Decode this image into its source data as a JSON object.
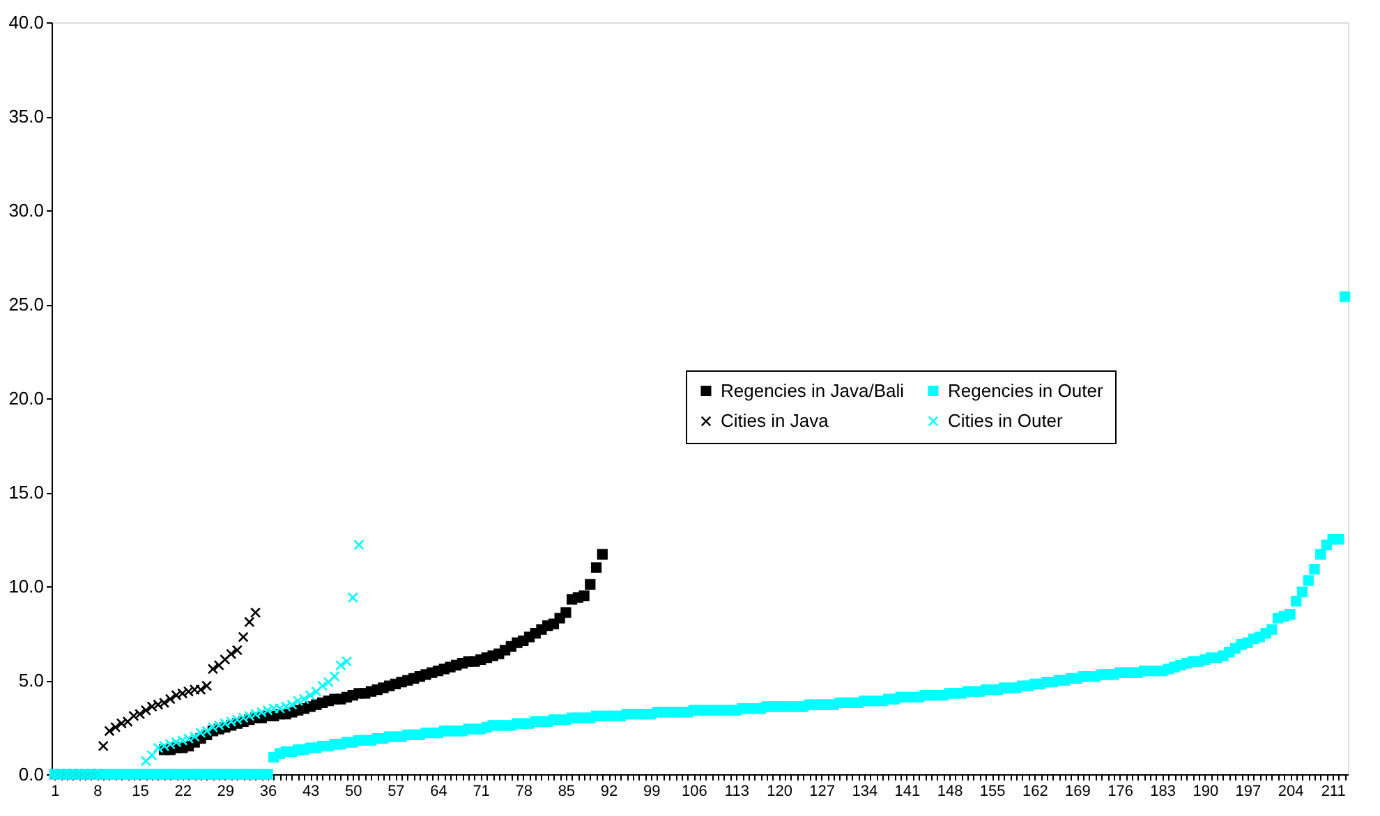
{
  "chart_data": {
    "type": "scatter",
    "categories": [
      "1",
      null,
      null,
      null,
      null,
      null,
      null,
      "8",
      null,
      null,
      null,
      null,
      null,
      null,
      "15",
      null,
      null,
      null,
      null,
      null,
      null,
      "22",
      null,
      null,
      null,
      null,
      null,
      null,
      "29",
      null,
      null,
      null,
      null,
      null,
      null,
      "36",
      null,
      null,
      null,
      null,
      null,
      null,
      "43",
      null,
      null,
      null,
      null,
      null,
      null,
      "50",
      null,
      null,
      null,
      null,
      null,
      null,
      "57",
      null,
      null,
      null,
      null,
      null,
      null,
      "64",
      null,
      null,
      null,
      null,
      null,
      null,
      "71",
      null,
      null,
      null,
      null,
      null,
      null,
      "78",
      null,
      null,
      null,
      null,
      null,
      null,
      "85",
      null,
      null,
      null,
      null,
      null,
      null,
      "92",
      null,
      null,
      null,
      null,
      null,
      null,
      "99",
      null,
      null,
      null,
      null,
      null,
      null,
      "106",
      null,
      null,
      null,
      null,
      null,
      null,
      "113",
      null,
      null,
      null,
      null,
      null,
      null,
      "120",
      null,
      null,
      null,
      null,
      null,
      null,
      "127",
      null,
      null,
      null,
      null,
      null,
      null,
      "134",
      null,
      null,
      null,
      null,
      null,
      null,
      "141",
      null,
      null,
      null,
      null,
      null,
      null,
      "148",
      null,
      null,
      null,
      null,
      null,
      null,
      "155",
      null,
      null,
      null,
      null,
      null,
      null,
      "162",
      null,
      null,
      null,
      null,
      null,
      null,
      "169",
      null,
      null,
      null,
      null,
      null,
      null,
      "176",
      null,
      null,
      null,
      null,
      null,
      null,
      "183",
      null,
      null,
      null,
      null,
      null,
      null,
      "190",
      null,
      null,
      null,
      null,
      null,
      null,
      "197",
      null,
      null,
      null,
      null,
      null,
      null,
      "204",
      null,
      null,
      null,
      null,
      null,
      null,
      "211",
      null,
      null
    ],
    "series": [
      {
        "name": "Regencies in Java/Bali",
        "color": "#000000",
        "marker": "square",
        "values": [
          null,
          null,
          null,
          null,
          null,
          null,
          null,
          null,
          null,
          null,
          null,
          null,
          null,
          null,
          null,
          null,
          null,
          null,
          1.3,
          1.3,
          1.4,
          1.4,
          1.5,
          1.7,
          1.9,
          2.1,
          2.3,
          2.4,
          2.5,
          2.6,
          2.7,
          2.8,
          2.9,
          3.0,
          3.0,
          3.1,
          3.1,
          3.2,
          3.2,
          3.3,
          3.4,
          3.5,
          3.6,
          3.7,
          3.8,
          3.9,
          4.0,
          4.0,
          4.1,
          4.2,
          4.3,
          4.3,
          4.4,
          4.5,
          4.6,
          4.7,
          4.8,
          4.9,
          5.0,
          5.1,
          5.2,
          5.3,
          5.4,
          5.5,
          5.6,
          5.7,
          5.8,
          5.9,
          6.0,
          6.0,
          6.1,
          6.2,
          6.3,
          6.4,
          6.6,
          6.8,
          7.0,
          7.1,
          7.3,
          7.5,
          7.7,
          7.9,
          8.0,
          8.3,
          8.6,
          9.3,
          9.4,
          9.5,
          10.1,
          11.0,
          11.7,
          null,
          null,
          null,
          null,
          null,
          null,
          null,
          null,
          null,
          null,
          null,
          null,
          null,
          null,
          null,
          null,
          null,
          null,
          null,
          null,
          null,
          null,
          null,
          null,
          null,
          null,
          null,
          null,
          null,
          null,
          null,
          null,
          null,
          null,
          null,
          null,
          null,
          null,
          null,
          null,
          null,
          null,
          null,
          null,
          null,
          null,
          null,
          null,
          null,
          null,
          null,
          null,
          null,
          null,
          null,
          null,
          null,
          null,
          null,
          null,
          null,
          null,
          null,
          null,
          null,
          null,
          null,
          null,
          null,
          null,
          null,
          null,
          null,
          null,
          null,
          null,
          null,
          null,
          null,
          null,
          null,
          null,
          null,
          null,
          null,
          null,
          null,
          null,
          null,
          null,
          null,
          null,
          null,
          null,
          null,
          null,
          null,
          null,
          null,
          null,
          null,
          null,
          null,
          null,
          null,
          null,
          null,
          null,
          null,
          null,
          null,
          null,
          null,
          null,
          null,
          null,
          null,
          null,
          null,
          null,
          null,
          null
        ]
      },
      {
        "name": "Regencies in Outer",
        "color": "#00ffff",
        "marker": "square",
        "values": [
          0,
          0,
          0,
          0,
          0,
          0,
          0,
          0,
          0,
          0,
          0,
          0,
          0,
          0,
          0,
          0,
          0,
          0,
          0,
          0,
          0,
          0,
          0,
          0,
          0,
          0,
          0,
          0,
          0,
          0,
          0,
          0,
          0,
          0,
          0,
          0,
          0.9,
          1.1,
          1.2,
          1.2,
          1.3,
          1.3,
          1.4,
          1.4,
          1.5,
          1.5,
          1.6,
          1.6,
          1.7,
          1.7,
          1.8,
          1.8,
          1.8,
          1.9,
          1.9,
          2.0,
          2.0,
          2.0,
          2.1,
          2.1,
          2.1,
          2.2,
          2.2,
          2.2,
          2.3,
          2.3,
          2.3,
          2.3,
          2.4,
          2.4,
          2.4,
          2.5,
          2.6,
          2.6,
          2.6,
          2.6,
          2.7,
          2.7,
          2.7,
          2.8,
          2.8,
          2.8,
          2.9,
          2.9,
          2.9,
          3.0,
          3.0,
          3.0,
          3.0,
          3.1,
          3.1,
          3.1,
          3.1,
          3.1,
          3.2,
          3.2,
          3.2,
          3.2,
          3.2,
          3.3,
          3.3,
          3.3,
          3.3,
          3.3,
          3.3,
          3.4,
          3.4,
          3.4,
          3.4,
          3.4,
          3.4,
          3.4,
          3.4,
          3.5,
          3.5,
          3.5,
          3.5,
          3.6,
          3.6,
          3.6,
          3.6,
          3.6,
          3.6,
          3.6,
          3.7,
          3.7,
          3.7,
          3.7,
          3.7,
          3.8,
          3.8,
          3.8,
          3.8,
          3.9,
          3.9,
          3.9,
          3.9,
          4.0,
          4.0,
          4.1,
          4.1,
          4.1,
          4.1,
          4.2,
          4.2,
          4.2,
          4.2,
          4.3,
          4.3,
          4.3,
          4.4,
          4.4,
          4.4,
          4.5,
          4.5,
          4.5,
          4.6,
          4.6,
          4.6,
          4.7,
          4.7,
          4.8,
          4.8,
          4.9,
          4.9,
          5.0,
          5.0,
          5.1,
          5.1,
          5.2,
          5.2,
          5.2,
          5.3,
          5.3,
          5.3,
          5.4,
          5.4,
          5.4,
          5.4,
          5.5,
          5.5,
          5.5,
          5.5,
          5.6,
          5.7,
          5.8,
          5.9,
          6.0,
          6.0,
          6.1,
          6.2,
          6.2,
          6.3,
          6.5,
          6.7,
          6.9,
          7.0,
          7.2,
          7.3,
          7.5,
          7.7,
          8.3,
          8.4,
          8.5,
          9.2,
          9.7,
          10.3,
          10.9,
          11.7,
          12.2,
          12.5,
          12.5,
          25.4
        ]
      },
      {
        "name": "Cities in Java",
        "color": "#000000",
        "marker": "cross",
        "values": [
          0,
          0,
          0,
          0,
          0,
          0,
          0,
          0,
          1.5,
          2.3,
          2.5,
          2.7,
          2.8,
          3.1,
          3.2,
          3.4,
          3.6,
          3.7,
          3.8,
          4.0,
          4.2,
          4.3,
          4.4,
          4.5,
          4.5,
          4.7,
          5.6,
          5.8,
          6.1,
          6.4,
          6.6,
          7.3,
          8.1,
          8.6,
          null,
          null,
          null,
          null,
          null,
          null,
          null,
          null,
          null,
          null,
          null,
          null,
          null,
          null,
          null,
          null,
          null,
          null,
          null,
          null,
          null,
          null,
          null,
          null,
          null,
          null,
          null,
          null,
          null,
          null,
          null,
          null,
          null,
          null,
          null,
          null,
          null,
          null,
          null,
          null,
          null,
          null,
          null,
          null,
          null,
          null,
          null,
          null,
          null,
          null,
          null,
          null,
          null,
          null,
          null,
          null,
          null,
          null,
          null,
          null,
          null,
          null,
          null,
          null,
          null,
          null,
          null,
          null,
          null,
          null,
          null,
          null,
          null,
          null,
          null,
          null,
          null,
          null,
          null,
          null,
          null,
          null,
          null,
          null,
          null,
          null,
          null,
          null,
          null,
          null,
          null,
          null,
          null,
          null,
          null,
          null,
          null,
          null,
          null,
          null,
          null,
          null,
          null,
          null,
          null,
          null,
          null,
          null,
          null,
          null,
          null,
          null,
          null,
          null,
          null,
          null,
          null,
          null,
          null,
          null,
          null,
          null,
          null,
          null,
          null,
          null,
          null,
          null,
          null,
          null,
          null,
          null,
          null,
          null,
          null,
          null,
          null,
          null,
          null,
          null,
          null,
          null,
          null,
          null,
          null,
          null,
          null,
          null,
          null,
          null,
          null,
          null,
          null,
          null,
          null,
          null,
          null,
          null,
          null,
          null,
          null,
          null,
          null,
          null,
          null,
          null,
          null,
          null,
          null,
          null,
          null,
          null,
          null,
          null,
          null,
          null,
          null,
          null,
          null
        ]
      },
      {
        "name": "Cities in Outer",
        "color": "#00ffff",
        "marker": "cross",
        "values": [
          0,
          0,
          0,
          0,
          0,
          0,
          0,
          0,
          0,
          null,
          null,
          null,
          null,
          null,
          null,
          0.7,
          1.0,
          1.4,
          1.5,
          1.6,
          1.7,
          1.8,
          1.9,
          2.0,
          2.2,
          2.3,
          2.5,
          2.6,
          2.7,
          2.8,
          2.9,
          3.0,
          3.1,
          3.2,
          3.3,
          3.4,
          3.5,
          3.5,
          3.6,
          3.7,
          3.9,
          4.0,
          4.2,
          4.4,
          4.7,
          4.9,
          5.2,
          5.8,
          6.0,
          9.4,
          12.2,
          null,
          null,
          null,
          null,
          null,
          null,
          null,
          null,
          null,
          null,
          null,
          null,
          null,
          null,
          null,
          null,
          null,
          null,
          null,
          null,
          null,
          null,
          null,
          null,
          null,
          null,
          null,
          null,
          null,
          null,
          null,
          null,
          null,
          null,
          null,
          null,
          null,
          null,
          null,
          null,
          null,
          null,
          null,
          null,
          null,
          null,
          null,
          null,
          null,
          null,
          null,
          null,
          null,
          null,
          null,
          null,
          null,
          null,
          null,
          null,
          null,
          null,
          null,
          null,
          null,
          null,
          null,
          null,
          null,
          null,
          null,
          null,
          null,
          null,
          null,
          null,
          null,
          null,
          null,
          null,
          null,
          null,
          null,
          null,
          null,
          null,
          null,
          null,
          null,
          null,
          null,
          null,
          null,
          null,
          null,
          null,
          null,
          null,
          null,
          null,
          null,
          null,
          null,
          null,
          null,
          null,
          null,
          null,
          null,
          null,
          null,
          null,
          null,
          null,
          null,
          null,
          null,
          null,
          null,
          null,
          null,
          null,
          null,
          null,
          null,
          null,
          null,
          null,
          null,
          null,
          null,
          null,
          null,
          null,
          null,
          null,
          null,
          null,
          null,
          null,
          null,
          null,
          null,
          null,
          null,
          null,
          null,
          null,
          null,
          null,
          null,
          null,
          null,
          null,
          null,
          null,
          null,
          null,
          null,
          null,
          null,
          null
        ]
      }
    ],
    "ylim": [
      0,
      40
    ],
    "yticks": [
      {
        "value": 0,
        "label": "0.0"
      },
      {
        "value": 5,
        "label": "5.0"
      },
      {
        "value": 10,
        "label": "10.0"
      },
      {
        "value": 15,
        "label": "15.0"
      },
      {
        "value": 20,
        "label": "20.0"
      },
      {
        "value": 25,
        "label": "25.0"
      },
      {
        "value": 30,
        "label": "30.0"
      },
      {
        "value": 35,
        "label": "35.0"
      },
      {
        "value": 40,
        "label": "40.0"
      }
    ],
    "grid": false,
    "legend": "center"
  }
}
